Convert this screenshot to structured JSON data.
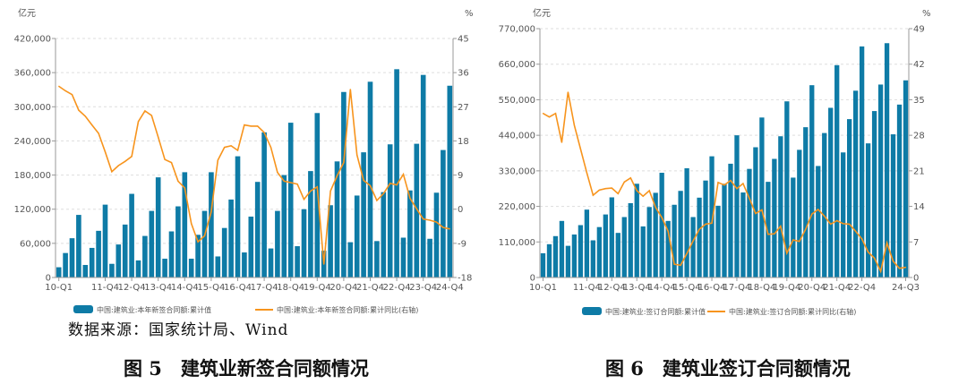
{
  "source_note": "数据来源：国家统计局、Wind",
  "captions": [
    "图 5　建筑业新签合同额情况",
    "图 6　建筑业签订合同额情况"
  ],
  "colors": {
    "bar": "#0e7ba6",
    "line": "#f7941d",
    "grid": "#dddddd",
    "axis": "#999999",
    "text": "#555555"
  },
  "chart_data": [
    {
      "type": "bar+line",
      "left_unit": "亿元",
      "right_unit": "%",
      "ylim": [
        0,
        420000
      ],
      "yticks": [
        0,
        60000,
        120000,
        180000,
        240000,
        300000,
        360000,
        420000
      ],
      "ylim_right": [
        -18,
        45
      ],
      "yticks_right": [
        -18,
        -9,
        0,
        9,
        18,
        27,
        36,
        45
      ],
      "grid": true,
      "legend": "bottom",
      "x_tick_labels": [
        "10-Q1",
        "11-Q4",
        "12-Q4",
        "13-Q4",
        "14-Q4",
        "15-Q4",
        "16-Q4",
        "17-Q4",
        "18-Q4",
        "19-Q4",
        "20-Q4",
        "21-Q4",
        "22-Q4",
        "23-Q4",
        "24-Q4"
      ],
      "categories": [
        "10-Q1",
        "10-Q2",
        "10-Q3",
        "10-Q4",
        "11-Q1",
        "11-Q2",
        "11-Q3",
        "11-Q4",
        "12-Q1",
        "12-Q2",
        "12-Q3",
        "12-Q4",
        "13-Q1",
        "13-Q2",
        "13-Q3",
        "13-Q4",
        "14-Q1",
        "14-Q2",
        "14-Q3",
        "14-Q4",
        "15-Q1",
        "15-Q2",
        "15-Q3",
        "15-Q4",
        "16-Q1",
        "16-Q2",
        "16-Q3",
        "16-Q4",
        "17-Q1",
        "17-Q2",
        "17-Q3",
        "17-Q4",
        "18-Q1",
        "18-Q2",
        "18-Q3",
        "18-Q4",
        "19-Q1",
        "19-Q2",
        "19-Q3",
        "19-Q4",
        "20-Q1",
        "20-Q2",
        "20-Q3",
        "20-Q4",
        "21-Q1",
        "21-Q2",
        "21-Q3",
        "21-Q4",
        "22-Q1",
        "22-Q2",
        "22-Q3",
        "22-Q4",
        "23-Q1",
        "23-Q2",
        "23-Q3",
        "23-Q4",
        "24-Q1",
        "24-Q2",
        "24-Q3",
        "24-Q4"
      ],
      "series": [
        {
          "name": "中国:建筑业:本年新签合同额:累计值",
          "type": "bar",
          "axis": "left",
          "values": [
            18000,
            43000,
            69000,
            110000,
            22000,
            52000,
            82000,
            128000,
            24000,
            58000,
            93000,
            147000,
            30000,
            73000,
            117000,
            176000,
            33000,
            81000,
            125000,
            185000,
            33000,
            75000,
            117000,
            185000,
            37000,
            87000,
            137000,
            213000,
            44000,
            107000,
            168000,
            255000,
            51000,
            117000,
            180000,
            272000,
            55000,
            120000,
            187000,
            289000,
            47000,
            127000,
            204000,
            326000,
            62000,
            144000,
            220000,
            344000,
            64000,
            150000,
            234000,
            366000,
            70000,
            153000,
            235000,
            356000,
            68000,
            149000,
            224000,
            337000
          ]
        },
        {
          "name": "中国:建筑业:本年新签合同额:累计同比(右轴)",
          "type": "line",
          "axis": "right",
          "values": [
            32.4,
            31.2,
            30.2,
            26.1,
            24.5,
            22.2,
            20.0,
            15.1,
            9.9,
            11.5,
            12.6,
            13.9,
            23.1,
            25.9,
            24.7,
            19.0,
            13.1,
            12.3,
            7.4,
            5.6,
            -3.8,
            -8.6,
            -7.0,
            -0.7,
            12.9,
            16.3,
            16.7,
            15.5,
            22.2,
            21.9,
            21.9,
            20.2,
            16.3,
            9.7,
            7.4,
            7.0,
            6.6,
            2.6,
            4.8,
            5.9,
            -14.5,
            4.8,
            8.8,
            12.3,
            31.6,
            14.3,
            7.6,
            6.2,
            2.3,
            4.1,
            6.8,
            6.4,
            9.2,
            2.9,
            0.1,
            -2.6,
            -2.9,
            -3.4,
            -4.8,
            -5.2
          ]
        }
      ]
    },
    {
      "type": "bar+line",
      "left_unit": "亿元",
      "right_unit": "%",
      "ylim": [
        0,
        770000
      ],
      "yticks": [
        0,
        110000,
        220000,
        330000,
        440000,
        550000,
        660000,
        770000
      ],
      "ylim_right": [
        0,
        49
      ],
      "yticks_right": [
        0,
        7,
        14,
        21,
        28,
        35,
        42,
        49
      ],
      "grid": true,
      "legend": "bottom",
      "x_tick_labels": [
        "10-Q1",
        "11-Q4",
        "12-Q4",
        "13-Q4",
        "14-Q4",
        "15-Q4",
        "16-Q4",
        "17-Q4",
        "18-Q4",
        "19-Q4",
        "20-Q4",
        "21-Q4",
        "22-Q4",
        "24-Q3"
      ],
      "categories": [
        "10-Q1",
        "10-Q2",
        "10-Q3",
        "10-Q4",
        "11-Q1",
        "11-Q2",
        "11-Q3",
        "11-Q4",
        "12-Q1",
        "12-Q2",
        "12-Q3",
        "12-Q4",
        "13-Q1",
        "13-Q2",
        "13-Q3",
        "13-Q4",
        "14-Q1",
        "14-Q2",
        "14-Q3",
        "14-Q4",
        "15-Q1",
        "15-Q2",
        "15-Q3",
        "15-Q4",
        "16-Q1",
        "16-Q2",
        "16-Q3",
        "16-Q4",
        "17-Q1",
        "17-Q2",
        "17-Q3",
        "17-Q4",
        "18-Q1",
        "18-Q2",
        "18-Q3",
        "18-Q4",
        "19-Q1",
        "19-Q2",
        "19-Q3",
        "19-Q4",
        "20-Q1",
        "20-Q2",
        "20-Q3",
        "20-Q4",
        "21-Q1",
        "21-Q2",
        "21-Q3",
        "21-Q4",
        "22-Q1",
        "22-Q2",
        "22-Q3",
        "22-Q4",
        "23-Q1",
        "23-Q2",
        "23-Q3",
        "23-Q4",
        "24-Q1",
        "24-Q2",
        "24-Q3"
      ],
      "series": [
        {
          "name": "中国:建筑业:签订合同额:累计值",
          "type": "bar",
          "axis": "left",
          "values": [
            75000,
            103000,
            128000,
            175000,
            98000,
            133000,
            162000,
            210000,
            115000,
            156000,
            195000,
            248000,
            138000,
            187000,
            230000,
            290000,
            158000,
            218000,
            262000,
            324000,
            175000,
            225000,
            268000,
            338000,
            187000,
            247000,
            300000,
            375000,
            222000,
            290000,
            352000,
            440000,
            263000,
            336000,
            403000,
            495000,
            296000,
            367000,
            437000,
            545000,
            309000,
            395000,
            465000,
            595000,
            345000,
            447000,
            525000,
            657000,
            387000,
            490000,
            578000,
            715000,
            415000,
            515000,
            597000,
            725000,
            443000,
            535000,
            610000
          ]
        },
        {
          "name": "中国:建筑业:签订合同额:累计同比(右轴)",
          "type": "line",
          "axis": "right",
          "values": [
            32.3,
            31.6,
            32.3,
            26.6,
            36.5,
            30.0,
            25.3,
            20.6,
            16.2,
            17.2,
            17.5,
            17.6,
            16.5,
            18.8,
            19.6,
            17.1,
            16.0,
            17.1,
            13.8,
            11.8,
            9.1,
            2.6,
            2.4,
            4.7,
            7.2,
            9.5,
            10.5,
            10.7,
            18.7,
            18.2,
            19.1,
            17.5,
            18.5,
            15.6,
            12.6,
            13.3,
            8.5,
            8.6,
            10.1,
            4.8,
            7.4,
            7.1,
            9.5,
            12.5,
            13.4,
            12.1,
            10.5,
            11.2,
            10.6,
            10.5,
            9.1,
            7.6,
            5.0,
            3.8,
            1.2,
            6.8,
            3.2,
            1.8,
            2.0
          ]
        }
      ]
    }
  ]
}
